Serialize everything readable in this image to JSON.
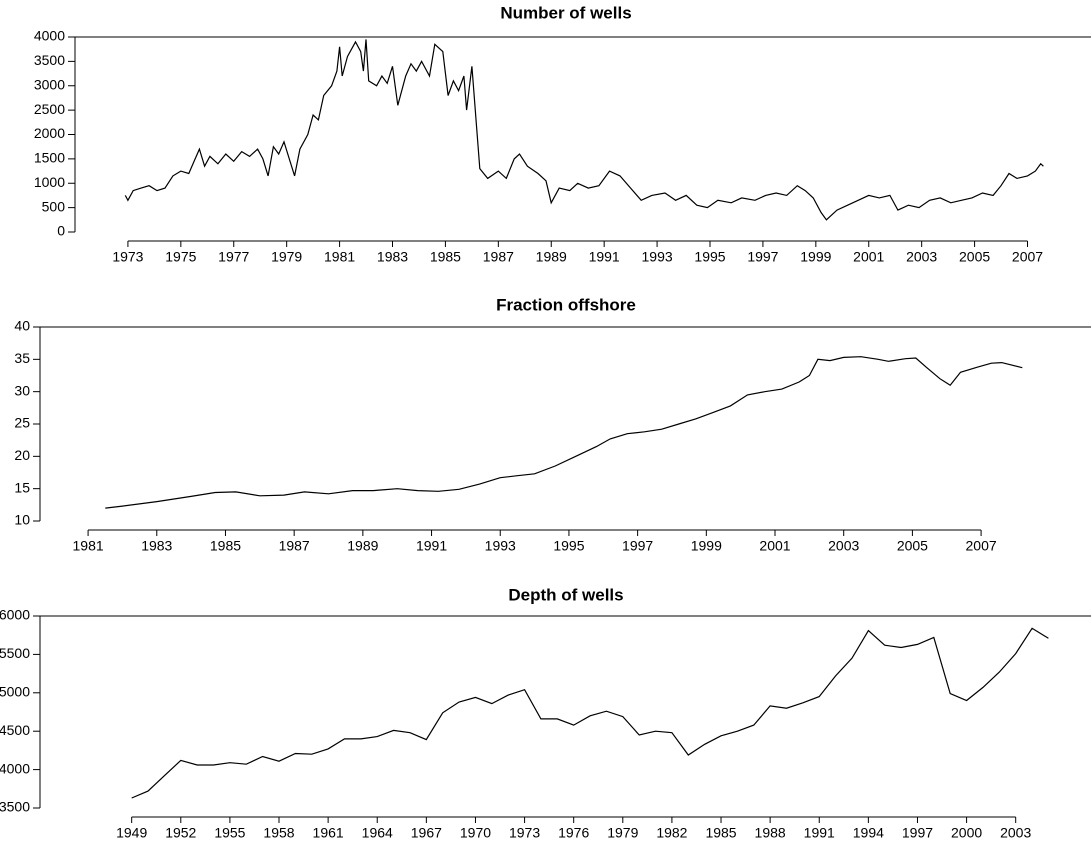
{
  "chart_data": [
    {
      "type": "line",
      "title": "Number of wells",
      "color": "#000000",
      "xlim": [
        1971,
        2009.4
      ],
      "ylim": [
        0,
        4000
      ],
      "xticks": [
        1973,
        1975,
        1977,
        1979,
        1981,
        1983,
        1985,
        1987,
        1989,
        1991,
        1993,
        1995,
        1997,
        1999,
        2001,
        2003,
        2005,
        2007
      ],
      "yticks": [
        0,
        500,
        1000,
        1500,
        2000,
        2500,
        3000,
        3500,
        4000
      ],
      "x": [
        1972.9,
        1973.0,
        1973.2,
        1973.5,
        1973.8,
        1974.1,
        1974.4,
        1974.7,
        1975.0,
        1975.3,
        1975.5,
        1975.7,
        1975.9,
        1976.1,
        1976.4,
        1976.7,
        1977.0,
        1977.3,
        1977.6,
        1977.9,
        1978.1,
        1978.3,
        1978.5,
        1978.7,
        1978.9,
        1979.1,
        1979.3,
        1979.5,
        1979.8,
        1980.0,
        1980.2,
        1980.4,
        1980.7,
        1980.9,
        1981.0,
        1981.1,
        1981.3,
        1981.6,
        1981.8,
        1981.9,
        1982.0,
        1982.1,
        1982.4,
        1982.6,
        1982.8,
        1983.0,
        1983.2,
        1983.5,
        1983.7,
        1983.9,
        1984.1,
        1984.4,
        1984.6,
        1984.9,
        1985.1,
        1985.3,
        1985.5,
        1985.7,
        1985.8,
        1986.0,
        1986.3,
        1986.6,
        1987.0,
        1987.3,
        1987.6,
        1987.8,
        1988.1,
        1988.5,
        1988.8,
        1989.0,
        1989.3,
        1989.7,
        1990.0,
        1990.4,
        1990.8,
        1991.2,
        1991.6,
        1992.0,
        1992.4,
        1992.8,
        1993.3,
        1993.7,
        1994.1,
        1994.5,
        1994.9,
        1995.3,
        1995.8,
        1996.2,
        1996.7,
        1997.1,
        1997.5,
        1997.9,
        1998.3,
        1998.6,
        1998.9,
        1999.2,
        1999.4,
        1999.8,
        2000.2,
        2000.6,
        2001.0,
        2001.4,
        2001.8,
        2002.1,
        2002.5,
        2002.9,
        2003.3,
        2003.7,
        2004.1,
        2004.5,
        2004.9,
        2005.3,
        2005.7,
        2006.0,
        2006.3,
        2006.6,
        2007.0,
        2007.3,
        2007.5,
        2007.6
      ],
      "values": [
        750,
        650,
        850,
        900,
        950,
        850,
        900,
        1150,
        1250,
        1200,
        1450,
        1700,
        1350,
        1550,
        1400,
        1600,
        1450,
        1650,
        1550,
        1700,
        1500,
        1150,
        1750,
        1600,
        1850,
        1500,
        1150,
        1700,
        2000,
        2400,
        2300,
        2800,
        3000,
        3300,
        3800,
        3200,
        3600,
        3900,
        3700,
        3300,
        3950,
        3100,
        3000,
        3200,
        3050,
        3400,
        2600,
        3200,
        3450,
        3300,
        3500,
        3200,
        3850,
        3700,
        2800,
        3100,
        2900,
        3200,
        2500,
        3400,
        1300,
        1100,
        1250,
        1100,
        1500,
        1600,
        1350,
        1200,
        1050,
        600,
        900,
        850,
        1000,
        900,
        950,
        1250,
        1150,
        900,
        650,
        750,
        800,
        650,
        750,
        550,
        500,
        650,
        600,
        700,
        650,
        750,
        800,
        750,
        950,
        850,
        700,
        400,
        250,
        450,
        550,
        650,
        750,
        700,
        750,
        450,
        550,
        500,
        650,
        700,
        600,
        650,
        700,
        800,
        750,
        950,
        1200,
        1100,
        1150,
        1250,
        1400,
        1350
      ]
    },
    {
      "type": "line",
      "title": "Fraction offshore",
      "color": "#000000",
      "xlim": [
        1979.6,
        2010.2
      ],
      "ylim": [
        10,
        40
      ],
      "xticks": [
        1981,
        1983,
        1985,
        1987,
        1989,
        1991,
        1993,
        1995,
        1997,
        1999,
        2001,
        2003,
        2005,
        2007
      ],
      "yticks": [
        10,
        15,
        20,
        25,
        30,
        35,
        40
      ],
      "x": [
        1981.5,
        1982.0,
        1983.0,
        1984.0,
        1984.7,
        1985.3,
        1986.0,
        1986.7,
        1987.3,
        1988.0,
        1988.7,
        1989.3,
        1990.0,
        1990.6,
        1991.2,
        1991.8,
        1992.4,
        1993.0,
        1993.5,
        1994.0,
        1994.6,
        1995.2,
        1995.8,
        1996.2,
        1996.7,
        1997.2,
        1997.7,
        1998.2,
        1998.7,
        1999.2,
        1999.7,
        2000.2,
        2000.7,
        2001.2,
        2001.7,
        2002.0,
        2002.25,
        2002.6,
        2003.0,
        2003.5,
        2004.0,
        2004.3,
        2004.8,
        2005.1,
        2005.4,
        2005.8,
        2006.1,
        2006.4,
        2006.9,
        2007.3,
        2007.6,
        2008.2
      ],
      "values": [
        12.0,
        12.3,
        13.0,
        13.8,
        14.4,
        14.5,
        13.9,
        14.0,
        14.5,
        14.2,
        14.7,
        14.7,
        15.0,
        14.7,
        14.6,
        14.9,
        15.7,
        16.7,
        17.0,
        17.3,
        18.5,
        20.0,
        21.5,
        22.7,
        23.5,
        23.8,
        24.2,
        25.0,
        25.8,
        26.8,
        27.8,
        29.5,
        30.0,
        30.4,
        31.5,
        32.5,
        35.0,
        34.8,
        35.3,
        35.4,
        35.0,
        34.7,
        35.1,
        35.2,
        33.8,
        32.0,
        31.0,
        33.0,
        33.8,
        34.4,
        34.5,
        33.7
      ]
    },
    {
      "type": "line",
      "title": "Depth of wells",
      "color": "#000000",
      "xlim": [
        1943.4,
        2007.6
      ],
      "ylim": [
        3500,
        6000
      ],
      "xticks": [
        1949,
        1952,
        1955,
        1958,
        1961,
        1964,
        1967,
        1970,
        1973,
        1976,
        1979,
        1982,
        1985,
        1988,
        1991,
        1994,
        1997,
        2000,
        2003
      ],
      "yticks": [
        3500,
        4000,
        4500,
        5000,
        5500,
        6000
      ],
      "x": [
        1949,
        1950,
        1951,
        1952,
        1953,
        1954,
        1955,
        1956,
        1957,
        1958,
        1959,
        1960,
        1961,
        1962,
        1963,
        1964,
        1965,
        1966,
        1967,
        1968,
        1969,
        1970,
        1971,
        1972,
        1973,
        1974,
        1975,
        1976,
        1977,
        1978,
        1979,
        1980,
        1981,
        1982,
        1983,
        1984,
        1985,
        1986,
        1987,
        1988,
        1989,
        1990,
        1991,
        1992,
        1993,
        1994,
        1995,
        1996,
        1997,
        1998,
        1999,
        2000,
        2001,
        2002,
        2003,
        2004,
        2005
      ],
      "values": [
        3630,
        3720,
        3920,
        4120,
        4060,
        4060,
        4090,
        4070,
        4170,
        4110,
        4210,
        4200,
        4270,
        4400,
        4400,
        4430,
        4510,
        4480,
        4390,
        4740,
        4880,
        4940,
        4860,
        4970,
        5040,
        4660,
        4660,
        4580,
        4700,
        4760,
        4690,
        4450,
        4500,
        4480,
        4190,
        4330,
        4440,
        4500,
        4580,
        4830,
        4800,
        4870,
        4950,
        5220,
        5450,
        5810,
        5620,
        5590,
        5630,
        5720,
        4990,
        4900,
        5070,
        5270,
        5510,
        5840,
        5710
      ]
    }
  ]
}
